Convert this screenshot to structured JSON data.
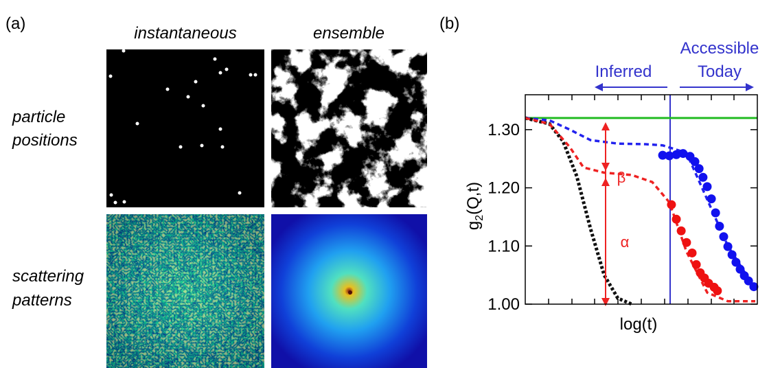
{
  "panel_a": {
    "label": "(a)",
    "columns": [
      "instantaneous",
      "ensemble"
    ],
    "rows": [
      [
        "particle",
        "positions"
      ],
      [
        "scattering",
        "patterns"
      ]
    ]
  },
  "chart_data": {
    "type": "line",
    "panel_label": "(b)",
    "xlabel": "log(t)",
    "ylabel": {
      "base": "g",
      "subscript": "2",
      "rest": "(Q,t)"
    },
    "annotations": {
      "inferred": "Inferred",
      "accessible": [
        "Accessible",
        "Today"
      ],
      "alpha": "α",
      "beta": "β"
    },
    "xlim": [
      0,
      10
    ],
    "ylim": [
      1.0,
      1.36
    ],
    "yticks": [
      {
        "value": 1.0,
        "label": "1.00"
      },
      {
        "value": 1.1,
        "label": "1.10"
      },
      {
        "value": 1.2,
        "label": "1.20"
      },
      {
        "value": 1.3,
        "label": "1.30"
      }
    ],
    "series": [
      {
        "color": "#22bb22",
        "style": "solid",
        "x": [
          0,
          10
        ],
        "values": [
          1.32,
          1.32
        ]
      },
      {
        "color": "#111111",
        "style": "dotted",
        "x": [
          0,
          1.04,
          1.63,
          2.22,
          2.81,
          3.4,
          3.99,
          4.59
        ],
        "values": [
          1.32,
          1.31,
          1.28,
          1.22,
          1.13,
          1.05,
          1.01,
          1.0
        ]
      },
      {
        "color": "#2222ee",
        "style": "dashed",
        "x": [
          0,
          1.04,
          1.92,
          2.81,
          3.99,
          5.18,
          5.92,
          6.95,
          7.84,
          8.73,
          9.85
        ],
        "values": [
          1.32,
          1.316,
          1.3,
          1.282,
          1.276,
          1.275,
          1.273,
          1.26,
          1.18,
          1.1,
          1.03
        ]
      },
      {
        "color": "#ee2222",
        "style": "dashed",
        "x": [
          0,
          1.04,
          1.92,
          2.51,
          3.4,
          4.59,
          5.47,
          6.21,
          6.95,
          7.84,
          8.73,
          9.91
        ],
        "values": [
          1.32,
          1.31,
          1.27,
          1.235,
          1.226,
          1.222,
          1.21,
          1.175,
          1.09,
          1.02,
          1.005,
          1.005
        ]
      },
      {
        "color": "#1111ee",
        "style": "dots",
        "x": [
          5.92,
          6.21,
          6.51,
          6.8,
          7.1,
          7.31,
          7.49,
          7.66,
          7.84,
          8.02,
          8.2,
          8.37,
          8.55,
          8.73,
          8.91,
          9.08,
          9.26,
          9.44,
          9.62,
          9.85
        ],
        "values": [
          1.256,
          1.255,
          1.257,
          1.259,
          1.254,
          1.245,
          1.233,
          1.218,
          1.202,
          1.181,
          1.157,
          1.134,
          1.116,
          1.099,
          1.085,
          1.072,
          1.06,
          1.049,
          1.04,
          1.03
        ]
      },
      {
        "color": "#ee1111",
        "style": "dots",
        "x": [
          6.3,
          6.51,
          6.72,
          6.95,
          7.19,
          7.37,
          7.54,
          7.72,
          7.9,
          8.14,
          8.28
        ],
        "values": [
          1.171,
          1.146,
          1.126,
          1.106,
          1.088,
          1.068,
          1.054,
          1.045,
          1.036,
          1.029,
          1.023
        ]
      }
    ]
  }
}
